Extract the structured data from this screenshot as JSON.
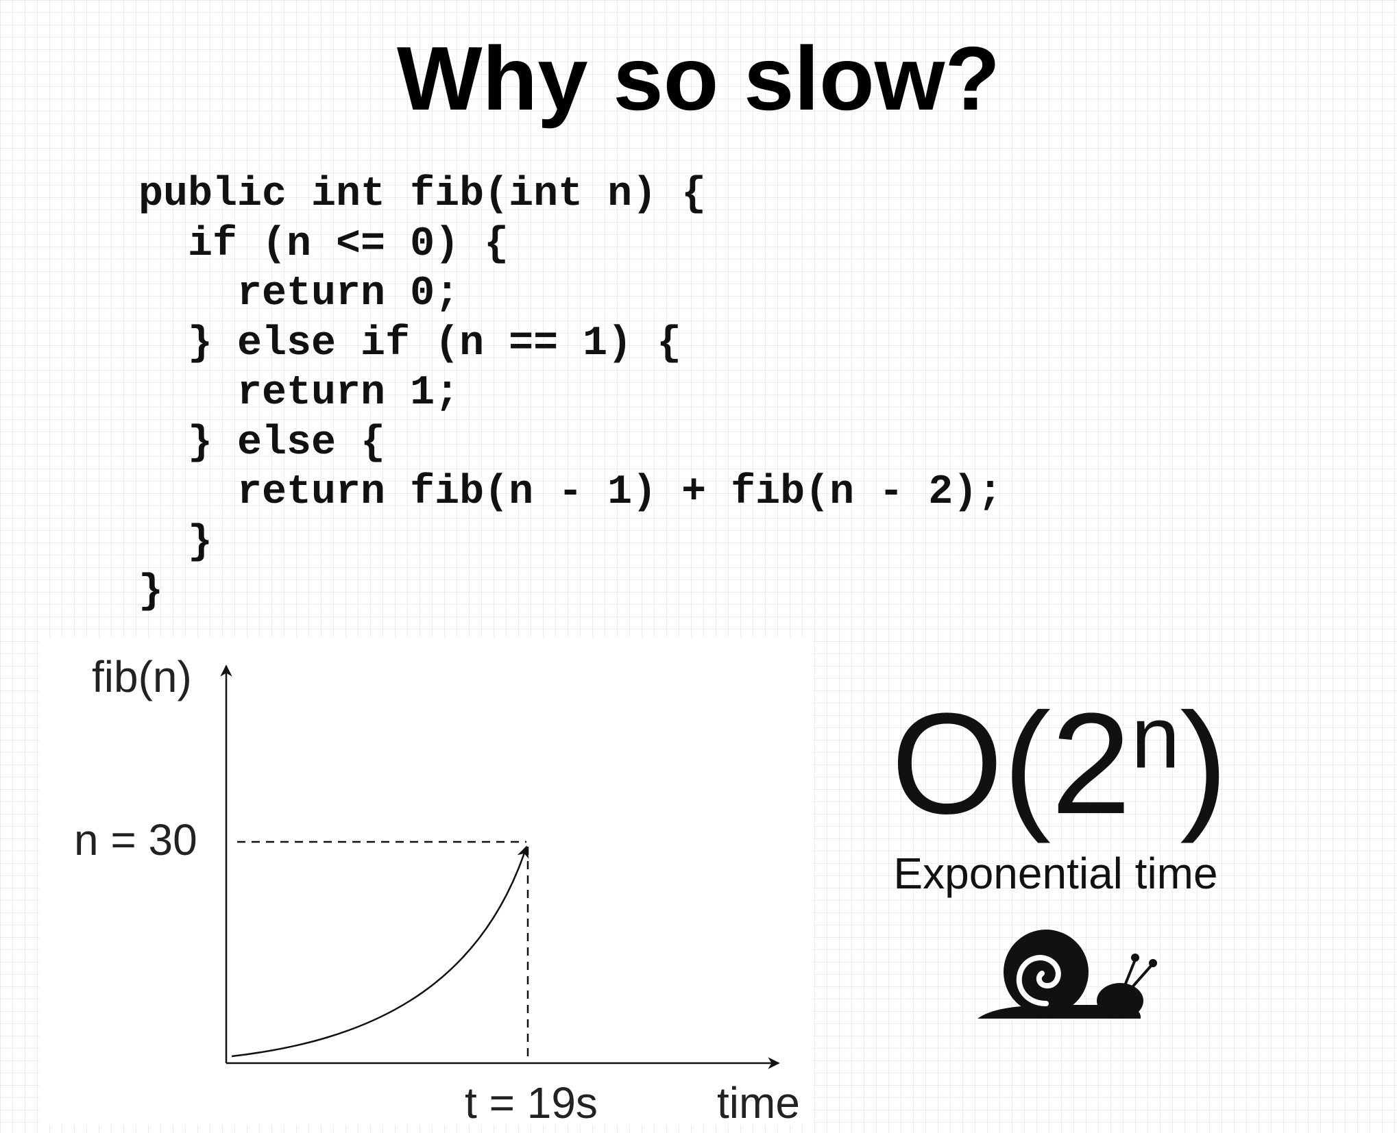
{
  "slide": {
    "title": "Why so slow?"
  },
  "code": {
    "lines": [
      "public int fib(int n) {",
      "  if (n <= 0) {",
      "    return 0;",
      "  } else if (n == 1) {",
      "    return 1;",
      "  } else {",
      "    return fib(n - 1) + fib(n - 2);",
      "  }",
      "}"
    ]
  },
  "graph": {
    "y_axis_label": "fib(n)",
    "x_axis_label": "time",
    "y_marker_label": "n = 30",
    "x_marker_label": "t = 19s",
    "curve": "exponential"
  },
  "complexity": {
    "base": "O(2",
    "exponent": "n",
    "close": ")",
    "label": "Exponential time",
    "icon": "snail-icon"
  }
}
